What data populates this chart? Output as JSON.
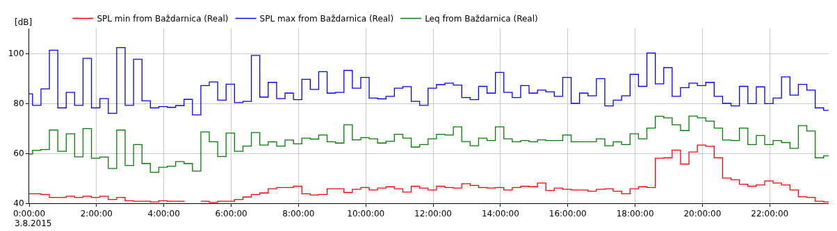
{
  "chart_data": {
    "type": "step",
    "ylabel": "[dB]",
    "x": [
      0,
      0.1,
      0.35,
      0.6,
      0.85,
      1.1,
      1.35,
      1.6,
      1.85,
      2.1,
      2.35,
      2.6,
      2.85,
      3.1,
      3.35,
      3.6,
      3.85,
      4.1,
      4.35,
      4.6,
      4.85,
      5.1,
      5.35,
      5.6,
      5.85,
      6.1,
      6.35,
      6.6,
      6.85,
      7.1,
      7.35,
      7.6,
      7.85,
      8.1,
      8.35,
      8.6,
      8.85,
      9.1,
      9.35,
      9.6,
      9.85,
      10.1,
      10.35,
      10.6,
      10.85,
      11.1,
      11.35,
      11.6,
      11.85,
      12.1,
      12.35,
      12.6,
      12.85,
      13.1,
      13.35,
      13.6,
      13.85,
      14.1,
      14.35,
      14.6,
      14.85,
      15.1,
      15.35,
      15.6,
      15.85,
      16.1,
      16.35,
      16.6,
      16.85,
      17.1,
      17.35,
      17.6,
      17.85,
      18.1,
      18.35,
      18.6,
      18.85,
      19.1,
      19.35,
      19.6,
      19.85,
      20.1,
      20.35,
      20.6,
      20.85,
      21.1,
      21.35,
      21.6,
      21.85,
      22.1,
      22.35,
      22.6,
      22.85,
      23.1,
      23.35,
      23.6,
      23.75
    ],
    "series": [
      {
        "name": "SPL min from Baždarnica (Real)",
        "color": "#ff0000",
        "values": [
          43.8,
          43.8,
          43.5,
          42.3,
          42.3,
          42.8,
          42.3,
          42.8,
          42.3,
          42.8,
          41.5,
          42.3,
          41.0,
          40.8,
          40.8,
          40.5,
          41.0,
          40.8,
          40.8,
          40.5,
          null,
          40.8,
          40.3,
          40.8,
          40.8,
          41.5,
          42.5,
          43.5,
          44.1,
          45.8,
          46.3,
          46.3,
          46.8,
          43.8,
          43.3,
          43.5,
          45.8,
          45.8,
          44.3,
          45.6,
          46.3,
          45.3,
          46.1,
          46.6,
          45.8,
          44.5,
          46.8,
          46.1,
          45.3,
          46.8,
          46.3,
          46.1,
          47.8,
          47.1,
          46.3,
          46.1,
          46.3,
          45.3,
          46.3,
          46.8,
          46.6,
          48.1,
          45.1,
          46.1,
          45.6,
          45.3,
          45.3,
          44.8,
          45.6,
          45.8,
          44.8,
          43.8,
          45.8,
          46.6,
          46.3,
          58.0,
          58.2,
          61.3,
          55.7,
          60.5,
          63.3,
          62.8,
          58.2,
          50.1,
          49.4,
          47.6,
          46.8,
          47.3,
          48.9,
          48.1,
          47.3,
          45.3,
          42.6,
          42.3,
          40.8,
          40.5,
          40.5
        ]
      },
      {
        "name": "SPL max from Baždarnica (Real)",
        "color": "#0000ff",
        "values": [
          83.8,
          79.2,
          85.8,
          101.3,
          78.2,
          84.4,
          79.2,
          98.0,
          78.2,
          81.9,
          76.0,
          102.3,
          79.2,
          97.7,
          81.0,
          78.2,
          78.7,
          78.4,
          79.1,
          81.6,
          75.4,
          87.1,
          88.6,
          81.3,
          87.7,
          80.3,
          80.8,
          99.2,
          82.5,
          88.4,
          81.9,
          84.1,
          81.5,
          89.6,
          85.6,
          92.7,
          84.1,
          84.4,
          93.2,
          86.1,
          90.4,
          82.1,
          81.8,
          82.8,
          86.1,
          86.7,
          80.8,
          79.2,
          86.1,
          87.5,
          88.1,
          87.3,
          82.3,
          81.5,
          86.8,
          84.1,
          92.4,
          84.4,
          82.3,
          87.1,
          84.1,
          85.3,
          84.6,
          82.8,
          90.4,
          80.0,
          84.1,
          83.0,
          89.9,
          79.0,
          81.3,
          83.0,
          91.6,
          86.8,
          100.2,
          87.8,
          94.3,
          82.8,
          86.3,
          88.1,
          87.1,
          88.4,
          82.8,
          80.0,
          79.0,
          86.8,
          79.9,
          86.6,
          79.9,
          82.1,
          90.6,
          83.3,
          87.6,
          85.3,
          78.2,
          77.2,
          77.2
        ]
      },
      {
        "name": "Leq from Baždarnica (Real)",
        "color": "#008000",
        "values": [
          59.7,
          61.2,
          61.5,
          69.3,
          60.8,
          67.8,
          58.6,
          69.9,
          58.0,
          58.5,
          53.9,
          69.3,
          55.1,
          63.5,
          55.9,
          52.4,
          54.4,
          54.8,
          56.7,
          55.9,
          52.9,
          68.6,
          64.6,
          58.7,
          68.1,
          60.8,
          62.9,
          68.3,
          63.3,
          64.6,
          62.9,
          65.3,
          63.8,
          66.1,
          65.7,
          67.3,
          64.6,
          64.1,
          71.4,
          65.4,
          66.3,
          65.8,
          64.1,
          64.8,
          67.6,
          66.1,
          62.5,
          63.5,
          65.8,
          67.6,
          67.3,
          70.6,
          64.7,
          63.0,
          66.1,
          65.1,
          70.6,
          65.8,
          64.6,
          65.1,
          64.6,
          65.4,
          65.1,
          65.1,
          67.3,
          64.6,
          64.6,
          64.6,
          65.8,
          63.0,
          64.6,
          63.5,
          67.8,
          65.8,
          70.1,
          74.8,
          74.2,
          71.4,
          69.1,
          74.9,
          74.2,
          72.9,
          70.1,
          65.3,
          65.1,
          70.1,
          63.5,
          67.1,
          63.5,
          65.1,
          64.3,
          62.0,
          71.1,
          68.9,
          58.2,
          59.0,
          59.0
        ]
      }
    ],
    "xlim": [
      0,
      23.75
    ],
    "xticks": [
      {
        "value": 0,
        "label": "0:00:00"
      },
      {
        "value": 2,
        "label": "2:00:00"
      },
      {
        "value": 4,
        "label": "4:00:00"
      },
      {
        "value": 6,
        "label": "6:00:00"
      },
      {
        "value": 8,
        "label": "8:00:00"
      },
      {
        "value": 10,
        "label": "10:00:00"
      },
      {
        "value": 12,
        "label": "12:00:00"
      },
      {
        "value": 14,
        "label": "14:00:00"
      },
      {
        "value": 16,
        "label": "16:00:00"
      },
      {
        "value": 18,
        "label": "18:00:00"
      },
      {
        "value": 20,
        "label": "20:00:00"
      },
      {
        "value": 22,
        "label": "22:00:00"
      }
    ],
    "ylim": [
      40,
      110
    ],
    "yticks": [
      40,
      60,
      80,
      100
    ],
    "annotations": [
      "3.8.2015"
    ],
    "grid": true,
    "legend": "top left"
  }
}
